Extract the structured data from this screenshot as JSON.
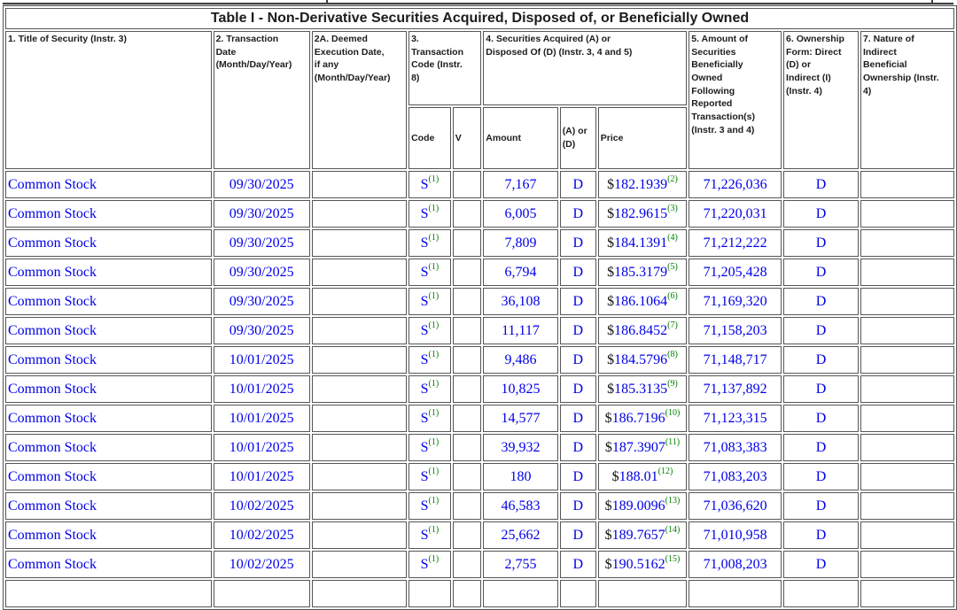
{
  "table": {
    "title": "Table I - Non-Derivative Securities Acquired, Disposed of, or Beneficially Owned",
    "columns": {
      "title_of_security": "1. Title of Security (Instr. 3)",
      "transaction_date": "2. Transaction\nDate\n(Month/Day/Year)",
      "deemed_execution_date": "2A. Deemed\nExecution Date,\nif any\n(Month/Day/Year)",
      "transaction_code": "3.\nTransaction\nCode (Instr.\n8)",
      "securities_acquired_disposed": "4. Securities Acquired (A) or\nDisposed Of (D) (Instr. 3, 4 and 5)",
      "sub_code": "Code",
      "sub_v": "V",
      "sub_amount": "Amount",
      "sub_a_or_d": "(A) or\n(D)",
      "sub_price": "Price",
      "amount_owned": "5. Amount of\nSecurities\nBeneficially\nOwned\nFollowing\nReported\nTransaction(s)\n(Instr. 3 and 4)",
      "ownership_form": "6. Ownership\nForm: Direct\n(D) or\nIndirect (I)\n(Instr. 4)",
      "nature_indirect": "7. Nature of\nIndirect\nBeneficial\nOwnership (Instr.\n4)"
    },
    "rows": [
      {
        "security": "Common Stock",
        "date": "09/30/2025",
        "deemed": "",
        "code": "S",
        "code_fn": "(1)",
        "v": "",
        "amount": "7,167",
        "a_or_d": "D",
        "price_currency": "$",
        "price": "182.1939",
        "price_fn": "(2)",
        "owned": "71,226,036",
        "ownership": "D",
        "nature": ""
      },
      {
        "security": "Common Stock",
        "date": "09/30/2025",
        "deemed": "",
        "code": "S",
        "code_fn": "(1)",
        "v": "",
        "amount": "6,005",
        "a_or_d": "D",
        "price_currency": "$",
        "price": "182.9615",
        "price_fn": "(3)",
        "owned": "71,220,031",
        "ownership": "D",
        "nature": ""
      },
      {
        "security": "Common Stock",
        "date": "09/30/2025",
        "deemed": "",
        "code": "S",
        "code_fn": "(1)",
        "v": "",
        "amount": "7,809",
        "a_or_d": "D",
        "price_currency": "$",
        "price": "184.1391",
        "price_fn": "(4)",
        "owned": "71,212,222",
        "ownership": "D",
        "nature": ""
      },
      {
        "security": "Common Stock",
        "date": "09/30/2025",
        "deemed": "",
        "code": "S",
        "code_fn": "(1)",
        "v": "",
        "amount": "6,794",
        "a_or_d": "D",
        "price_currency": "$",
        "price": "185.3179",
        "price_fn": "(5)",
        "owned": "71,205,428",
        "ownership": "D",
        "nature": ""
      },
      {
        "security": "Common Stock",
        "date": "09/30/2025",
        "deemed": "",
        "code": "S",
        "code_fn": "(1)",
        "v": "",
        "amount": "36,108",
        "a_or_d": "D",
        "price_currency": "$",
        "price": "186.1064",
        "price_fn": "(6)",
        "owned": "71,169,320",
        "ownership": "D",
        "nature": ""
      },
      {
        "security": "Common Stock",
        "date": "09/30/2025",
        "deemed": "",
        "code": "S",
        "code_fn": "(1)",
        "v": "",
        "amount": "11,117",
        "a_or_d": "D",
        "price_currency": "$",
        "price": "186.8452",
        "price_fn": "(7)",
        "owned": "71,158,203",
        "ownership": "D",
        "nature": ""
      },
      {
        "security": "Common Stock",
        "date": "10/01/2025",
        "deemed": "",
        "code": "S",
        "code_fn": "(1)",
        "v": "",
        "amount": "9,486",
        "a_or_d": "D",
        "price_currency": "$",
        "price": "184.5796",
        "price_fn": "(8)",
        "owned": "71,148,717",
        "ownership": "D",
        "nature": ""
      },
      {
        "security": "Common Stock",
        "date": "10/01/2025",
        "deemed": "",
        "code": "S",
        "code_fn": "(1)",
        "v": "",
        "amount": "10,825",
        "a_or_d": "D",
        "price_currency": "$",
        "price": "185.3135",
        "price_fn": "(9)",
        "owned": "71,137,892",
        "ownership": "D",
        "nature": ""
      },
      {
        "security": "Common Stock",
        "date": "10/01/2025",
        "deemed": "",
        "code": "S",
        "code_fn": "(1)",
        "v": "",
        "amount": "14,577",
        "a_or_d": "D",
        "price_currency": "$",
        "price": "186.7196",
        "price_fn": "(10)",
        "owned": "71,123,315",
        "ownership": "D",
        "nature": ""
      },
      {
        "security": "Common Stock",
        "date": "10/01/2025",
        "deemed": "",
        "code": "S",
        "code_fn": "(1)",
        "v": "",
        "amount": "39,932",
        "a_or_d": "D",
        "price_currency": "$",
        "price": "187.3907",
        "price_fn": "(11)",
        "owned": "71,083,383",
        "ownership": "D",
        "nature": ""
      },
      {
        "security": "Common Stock",
        "date": "10/01/2025",
        "deemed": "",
        "code": "S",
        "code_fn": "(1)",
        "v": "",
        "amount": "180",
        "a_or_d": "D",
        "price_currency": "$",
        "price": "188.01",
        "price_fn": "(12)",
        "owned": "71,083,203",
        "ownership": "D",
        "nature": ""
      },
      {
        "security": "Common Stock",
        "date": "10/02/2025",
        "deemed": "",
        "code": "S",
        "code_fn": "(1)",
        "v": "",
        "amount": "46,583",
        "a_or_d": "D",
        "price_currency": "$",
        "price": "189.0096",
        "price_fn": "(13)",
        "owned": "71,036,620",
        "ownership": "D",
        "nature": ""
      },
      {
        "security": "Common Stock",
        "date": "10/02/2025",
        "deemed": "",
        "code": "S",
        "code_fn": "(1)",
        "v": "",
        "amount": "25,662",
        "a_or_d": "D",
        "price_currency": "$",
        "price": "189.7657",
        "price_fn": "(14)",
        "owned": "71,010,958",
        "ownership": "D",
        "nature": ""
      },
      {
        "security": "Common Stock",
        "date": "10/02/2025",
        "deemed": "",
        "code": "S",
        "code_fn": "(1)",
        "v": "",
        "amount": "2,755",
        "a_or_d": "D",
        "price_currency": "$",
        "price": "190.5162",
        "price_fn": "(15)",
        "owned": "71,008,203",
        "ownership": "D",
        "nature": ""
      }
    ]
  },
  "colors": {
    "value_blue": "#0000e8",
    "footnote_green": "#008000",
    "border_gray": "#565656",
    "header_text": "#1c1c1c"
  }
}
